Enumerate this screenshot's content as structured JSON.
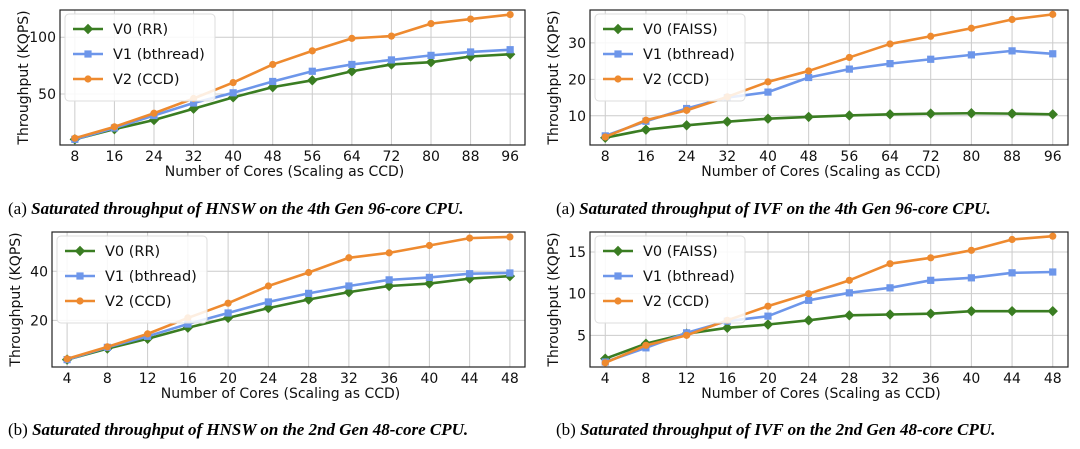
{
  "colors": {
    "v0": "#3a7d22",
    "v1": "#6d96ea",
    "v2": "#ee8a2f",
    "grid": "#cccccc",
    "axis": "#222222"
  },
  "chart_data": [
    {
      "type": "line",
      "xlabel": "Number of Cores (Scaling as CCD)",
      "ylabel": "Throughput (KQPS)",
      "xticks": [
        8,
        16,
        24,
        32,
        40,
        48,
        56,
        64,
        72,
        80,
        88,
        96
      ],
      "yticks": [
        50,
        100
      ],
      "xlim": [
        5,
        99
      ],
      "ylim": [
        5,
        124
      ],
      "grid": true,
      "legend_placement": "top-left",
      "x": [
        8,
        16,
        24,
        32,
        40,
        48,
        56,
        64,
        72,
        80,
        88,
        96
      ],
      "series": [
        {
          "name": "V0 (RR)",
          "key": "v0",
          "marker": "diamond",
          "values": [
            10,
            19,
            27,
            37,
            47,
            56,
            62,
            70,
            76,
            78,
            83,
            85
          ]
        },
        {
          "name": "V1 (bthread)",
          "key": "v1",
          "marker": "square",
          "values": [
            10,
            20,
            31,
            42,
            51,
            61,
            70,
            76,
            80,
            84,
            87,
            89
          ]
        },
        {
          "name": "V2 (CCD)",
          "key": "v2",
          "marker": "circle",
          "values": [
            11,
            21,
            33,
            46,
            60,
            76,
            88,
            99,
            101,
            112,
            116,
            120
          ]
        }
      ],
      "caption": {
        "label": "(a)",
        "title": "Saturated throughput of HNSW on the 4th Gen 96-core CPU."
      }
    },
    {
      "type": "line",
      "xlabel": "Number of Cores (Scaling as CCD)",
      "ylabel": "Throughput (KQPS)",
      "xticks": [
        8,
        16,
        24,
        32,
        40,
        48,
        56,
        64,
        72,
        80,
        88,
        96
      ],
      "yticks": [
        10,
        20,
        30
      ],
      "xlim": [
        5,
        99
      ],
      "ylim": [
        2,
        39
      ],
      "grid": true,
      "legend_placement": "top-left",
      "x": [
        8,
        16,
        24,
        32,
        40,
        48,
        56,
        64,
        72,
        80,
        88,
        96
      ],
      "series": [
        {
          "name": "V0 (FAISS)",
          "key": "v0",
          "marker": "diamond",
          "values": [
            4,
            6.2,
            7.4,
            8.4,
            9.2,
            9.7,
            10.1,
            10.4,
            10.6,
            10.7,
            10.6,
            10.4
          ]
        },
        {
          "name": "V1 (bthread)",
          "key": "v1",
          "marker": "square",
          "values": [
            4.5,
            8.5,
            12,
            15,
            16.5,
            20.5,
            22.8,
            24.3,
            25.5,
            26.7,
            27.8,
            27
          ]
        },
        {
          "name": "V2 (CCD)",
          "key": "v2",
          "marker": "circle",
          "values": [
            4.2,
            8.8,
            11.5,
            15.2,
            19.3,
            22.3,
            26,
            29.7,
            31.8,
            34,
            36.4,
            37.8
          ]
        }
      ],
      "caption": {
        "label": "(a)",
        "title": "Saturated throughput of IVF on the 4th Gen 96-core CPU."
      }
    },
    {
      "type": "line",
      "xlabel": "Number of Cores (Scaling as CCD)",
      "ylabel": "Throughput (KQPS)",
      "xticks": [
        4,
        8,
        12,
        16,
        20,
        24,
        28,
        32,
        36,
        40,
        44,
        48
      ],
      "yticks": [
        20,
        40
      ],
      "xlim": [
        2.5,
        49.5
      ],
      "ylim": [
        1,
        56
      ],
      "grid": true,
      "legend_placement": "top-left",
      "x": [
        4,
        8,
        12,
        16,
        20,
        24,
        28,
        32,
        36,
        40,
        44,
        48
      ],
      "series": [
        {
          "name": "V0 (RR)",
          "key": "v0",
          "marker": "diamond",
          "values": [
            4,
            8.5,
            12.5,
            17,
            21,
            25,
            28.5,
            31.5,
            34,
            35,
            37,
            38
          ]
        },
        {
          "name": "V1 (bthread)",
          "key": "v1",
          "marker": "square",
          "values": [
            4,
            9,
            13.5,
            18.5,
            23,
            27.5,
            31,
            34,
            36.5,
            37.5,
            39,
            39.3
          ]
        },
        {
          "name": "V2 (CCD)",
          "key": "v2",
          "marker": "circle",
          "values": [
            4.3,
            9.2,
            14.5,
            21,
            27,
            34,
            39.5,
            45.5,
            47.5,
            50.5,
            53.5,
            54
          ]
        }
      ],
      "caption": {
        "label": "(b)",
        "title": "Saturated throughput of HNSW on the 2nd Gen 48-core CPU."
      }
    },
    {
      "type": "line",
      "xlabel": "Number of Cores (Scaling as CCD)",
      "ylabel": "Throughput (KQPS)",
      "xticks": [
        4,
        8,
        12,
        16,
        20,
        24,
        28,
        32,
        36,
        40,
        44,
        48
      ],
      "yticks": [
        5,
        10,
        15
      ],
      "xlim": [
        2.5,
        49.5
      ],
      "ylim": [
        1.2,
        17.4
      ],
      "grid": true,
      "legend_placement": "top-left",
      "x": [
        4,
        8,
        12,
        16,
        20,
        24,
        28,
        32,
        36,
        40,
        44,
        48
      ],
      "series": [
        {
          "name": "V0 (FAISS)",
          "key": "v0",
          "marker": "diamond",
          "values": [
            2.2,
            4,
            5.2,
            5.9,
            6.3,
            6.8,
            7.4,
            7.5,
            7.6,
            7.9,
            7.9,
            7.9
          ]
        },
        {
          "name": "V1 (bthread)",
          "key": "v1",
          "marker": "square",
          "values": [
            1.8,
            3.5,
            5.3,
            6.7,
            7.3,
            9.2,
            10.1,
            10.7,
            11.6,
            11.9,
            12.5,
            12.6
          ]
        },
        {
          "name": "V2 (CCD)",
          "key": "v2",
          "marker": "circle",
          "values": [
            1.7,
            3.8,
            5,
            6.8,
            8.5,
            10,
            11.6,
            13.6,
            14.3,
            15.2,
            16.5,
            16.9
          ]
        }
      ],
      "caption": {
        "label": "(b)",
        "title": "Saturated throughput of IVF on the 2nd Gen 48-core CPU."
      }
    }
  ]
}
